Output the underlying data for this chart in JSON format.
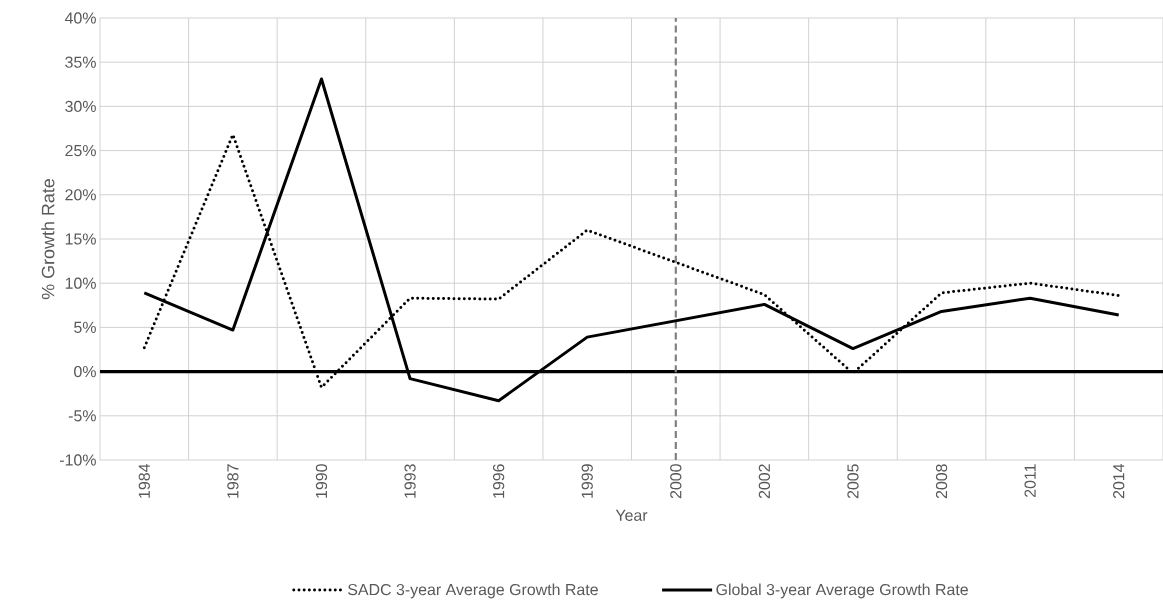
{
  "chart_data": {
    "type": "line",
    "xlabel": "Year",
    "ylabel": "%  Growth Rate",
    "categories": [
      "1984",
      "1987",
      "1990",
      "1993",
      "1996",
      "1999",
      "2000",
      "2002",
      "2005",
      "2008",
      "2011",
      "2014"
    ],
    "series": [
      {
        "name": "SADC 3-year Average Growth Rate",
        "color": "#000000",
        "line_style": "dotted",
        "values": [
          2.7,
          26.8,
          -1.8,
          8.3,
          8.2,
          16.0,
          null,
          8.7,
          -0.2,
          8.9,
          10.0,
          8.6
        ]
      },
      {
        "name": "Global 3-year Average Growth Rate",
        "color": "#000000",
        "line_style": "solid",
        "values": [
          8.9,
          4.7,
          33.1,
          -0.8,
          -3.3,
          3.9,
          null,
          7.6,
          2.6,
          6.8,
          8.3,
          6.4
        ]
      }
    ],
    "ylim": [
      -10,
      40
    ],
    "yticks": [
      {
        "value": -10,
        "label": "-10%"
      },
      {
        "value": -5,
        "label": "-5%"
      },
      {
        "value": 0,
        "label": "0%"
      },
      {
        "value": 5,
        "label": "5%"
      },
      {
        "value": 10,
        "label": "10%"
      },
      {
        "value": 15,
        "label": "15%"
      },
      {
        "value": 20,
        "label": "20%"
      },
      {
        "value": 25,
        "label": "25%"
      },
      {
        "value": 30,
        "label": "30%"
      },
      {
        "value": 35,
        "label": "35%"
      },
      {
        "value": 40,
        "label": "40%"
      }
    ],
    "ref_lines": [
      {
        "axis": "y",
        "value": 0,
        "color": "#000000",
        "line_style": "solid"
      },
      {
        "axis": "x",
        "value": "2000",
        "color": "#808080",
        "line_style": "dashed"
      }
    ],
    "grid": true,
    "legend": "bottom",
    "marker": "none"
  }
}
